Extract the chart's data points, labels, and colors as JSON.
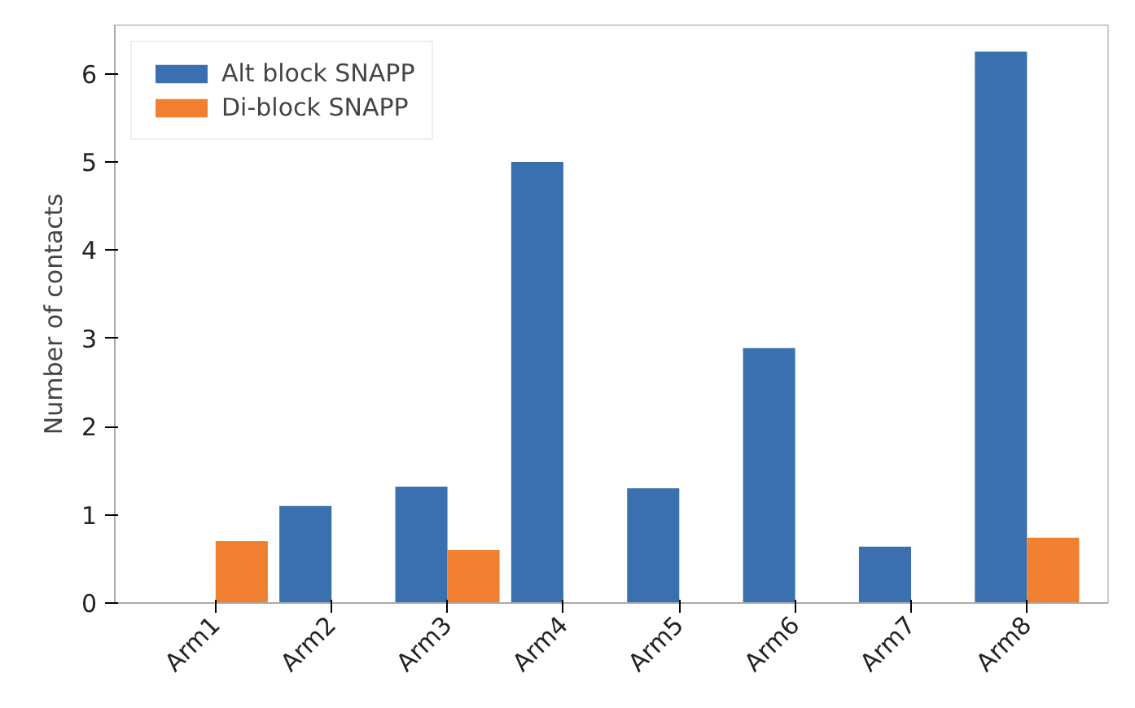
{
  "chart_data": {
    "type": "bar",
    "ylabel": "Number of contacts",
    "categories": [
      "Arm1",
      "Arm2",
      "Arm3",
      "Arm4",
      "Arm5",
      "Arm6",
      "Arm7",
      "Arm8"
    ],
    "series": [
      {
        "name": "Alt block SNAPP",
        "color": "#3a70b0",
        "values": [
          0,
          1.1,
          1.32,
          5.0,
          1.3,
          2.89,
          0.64,
          6.25
        ]
      },
      {
        "name": "Di-block SNAPP",
        "color": "#f08030",
        "values": [
          0.7,
          0,
          0.6,
          0,
          0,
          0,
          0,
          0.74
        ]
      }
    ],
    "ylim": [
      0,
      6.55
    ],
    "yticks": [
      0,
      1,
      2,
      3,
      4,
      5,
      6
    ],
    "grid": false,
    "legend": "top left"
  }
}
